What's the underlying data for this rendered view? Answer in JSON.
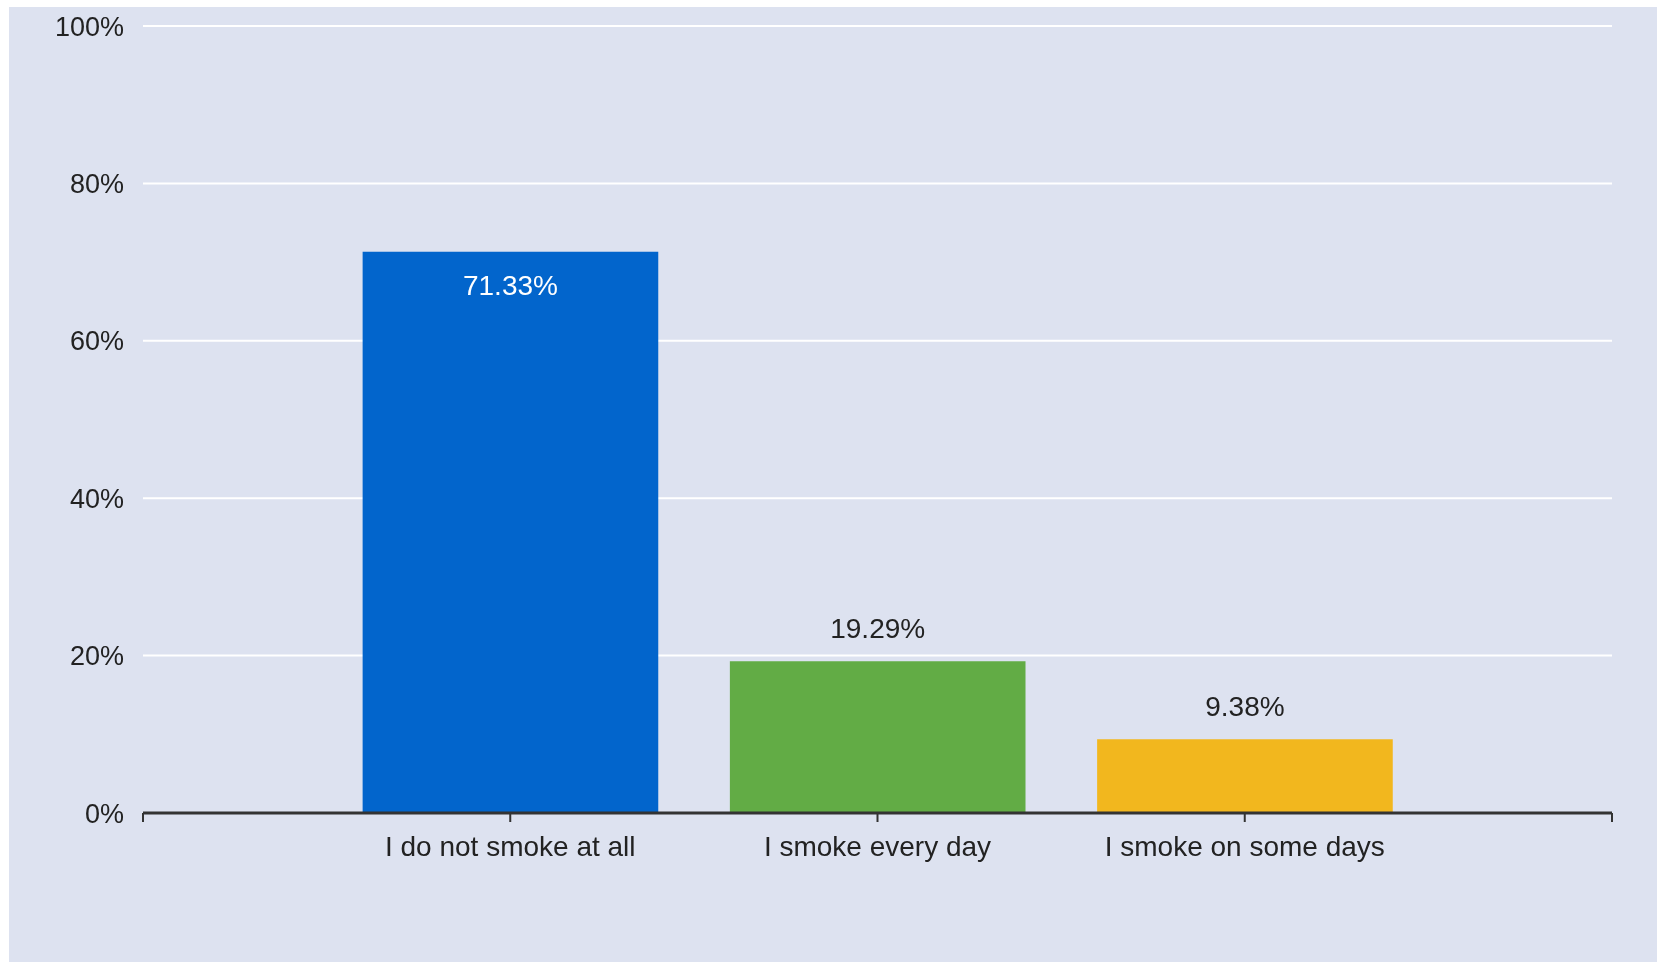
{
  "chart_data": {
    "type": "bar",
    "categories": [
      "I do not smoke at all",
      "I smoke every day",
      "I smoke on some days"
    ],
    "values": [
      71.33,
      19.29,
      9.38
    ],
    "colors": [
      "#0265cc",
      "#62ac45",
      "#f2b71e"
    ],
    "value_labels": [
      "71.33%",
      "19.29%",
      "9.38%"
    ],
    "ylim": [
      0,
      100
    ],
    "yticks": [
      {
        "value": 0,
        "label": "0%"
      },
      {
        "value": 20,
        "label": "20%"
      },
      {
        "value": 40,
        "label": "40%"
      },
      {
        "value": 60,
        "label": "60%"
      },
      {
        "value": 80,
        "label": "80%"
      },
      {
        "value": 100,
        "label": "100%"
      }
    ],
    "grid": "y"
  }
}
